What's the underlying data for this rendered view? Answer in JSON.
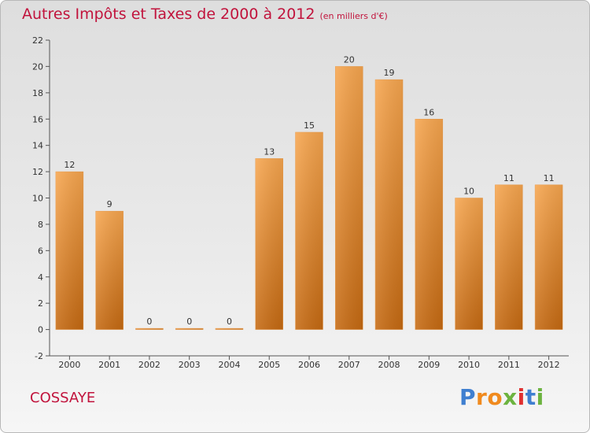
{
  "header": {
    "title": "Autres Impôts et Taxes de 2000 à 2012",
    "subtitle": "(en milliers d'€)"
  },
  "commune": "COSSAYE",
  "logo": {
    "letters": [
      "P",
      "r",
      "o",
      "x",
      "i",
      "t",
      "i"
    ],
    "colors": [
      "#3f7fd0",
      "#f08a1e",
      "#f08a1e",
      "#6cb33f",
      "#e03030",
      "#3f7fd0",
      "#6cb33f"
    ]
  },
  "colors": {
    "bar_top": "#f7a64f",
    "bar_bottom": "#c66a12",
    "title": "#c1133c"
  },
  "chart_data": {
    "type": "bar",
    "categories": [
      "2000",
      "2001",
      "2002",
      "2003",
      "2004",
      "2005",
      "2006",
      "2007",
      "2008",
      "2009",
      "2010",
      "2011",
      "2012"
    ],
    "values": [
      12,
      9,
      0,
      0,
      0,
      13,
      15,
      20,
      19,
      16,
      10,
      11,
      11
    ],
    "data_labels": [
      "12",
      "9",
      "0",
      "0",
      "0",
      "13",
      "15",
      "20",
      "19",
      "16",
      "10",
      "11",
      "11"
    ],
    "title": "Autres Impôts et Taxes de 2000 à 2012",
    "subtitle": "(en milliers d'€)",
    "xlabel": "",
    "ylabel": "",
    "ylim": [
      -2,
      22
    ],
    "yticks": [
      -2,
      0,
      2,
      4,
      6,
      8,
      10,
      12,
      14,
      16,
      18,
      20,
      22
    ],
    "grid": false
  }
}
